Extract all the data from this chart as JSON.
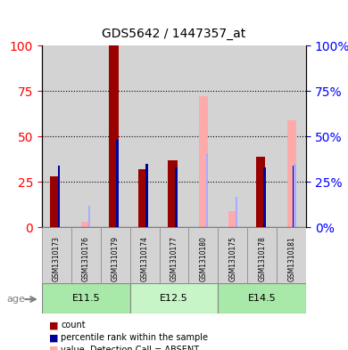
{
  "title": "GDS5642 / 1447357_at",
  "samples": [
    "GSM1310173",
    "GSM1310176",
    "GSM1310179",
    "GSM1310174",
    "GSM1310177",
    "GSM1310180",
    "GSM1310175",
    "GSM1310178",
    "GSM1310181"
  ],
  "age_groups": [
    {
      "label": "E11.5",
      "start": 0,
      "end": 3
    },
    {
      "label": "E12.5",
      "start": 3,
      "end": 6
    },
    {
      "label": "E14.5",
      "start": 6,
      "end": 9
    }
  ],
  "count_values": [
    28,
    0,
    100,
    32,
    37,
    0,
    0,
    39,
    0
  ],
  "percentile_values": [
    34,
    0,
    48,
    35,
    33,
    0,
    0,
    33,
    34
  ],
  "absent_value_values": [
    0,
    3,
    0,
    0,
    0,
    72,
    9,
    0,
    59
  ],
  "absent_rank_values": [
    0,
    12,
    0,
    0,
    0,
    41,
    17,
    0,
    35
  ],
  "count_color": "#990000",
  "percentile_color": "#000099",
  "absent_value_color": "#ffaaaa",
  "absent_rank_color": "#aaaaff",
  "ylim": [
    0,
    100
  ],
  "yticks": [
    0,
    25,
    50,
    75,
    100
  ],
  "bar_width": 0.35,
  "bg_color": "#ffffff",
  "plot_bg": "#ffffff",
  "age_bg_color": "#90EE90",
  "age_bg_color_light": "#c8f5c8",
  "sample_bg_color": "#d3d3d3"
}
